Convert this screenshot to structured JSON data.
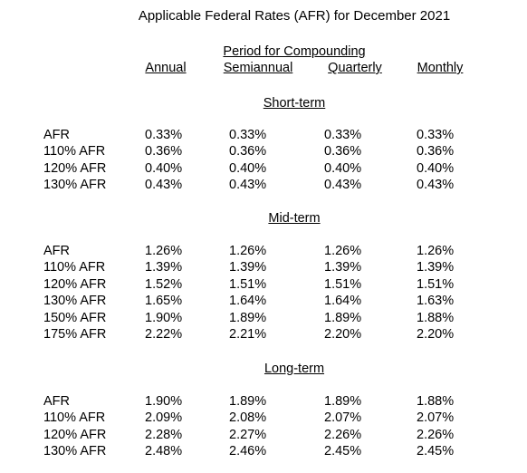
{
  "title": "Applicable Federal Rates (AFR) for December 2021",
  "group_header": "Period for Compounding",
  "columns": [
    "Annual",
    "Semiannual",
    "Quarterly",
    "Monthly"
  ],
  "sections": [
    {
      "heading": "Short-term",
      "rows": [
        {
          "label": "AFR",
          "values": [
            "0.33%",
            "0.33%",
            "0.33%",
            "0.33%"
          ]
        },
        {
          "label": "110% AFR",
          "values": [
            "0.36%",
            "0.36%",
            "0.36%",
            "0.36%"
          ]
        },
        {
          "label": "120% AFR",
          "values": [
            "0.40%",
            "0.40%",
            "0.40%",
            "0.40%"
          ]
        },
        {
          "label": "130% AFR",
          "values": [
            "0.43%",
            "0.43%",
            "0.43%",
            "0.43%"
          ]
        }
      ]
    },
    {
      "heading": "Mid-term",
      "rows": [
        {
          "label": "AFR",
          "values": [
            "1.26%",
            "1.26%",
            "1.26%",
            "1.26%"
          ]
        },
        {
          "label": "110% AFR",
          "values": [
            "1.39%",
            "1.39%",
            "1.39%",
            "1.39%"
          ]
        },
        {
          "label": "120% AFR",
          "values": [
            "1.52%",
            "1.51%",
            "1.51%",
            "1.51%"
          ]
        },
        {
          "label": "130% AFR",
          "values": [
            "1.65%",
            "1.64%",
            "1.64%",
            "1.63%"
          ]
        },
        {
          "label": "150% AFR",
          "values": [
            "1.90%",
            "1.89%",
            "1.89%",
            "1.88%"
          ]
        },
        {
          "label": "175% AFR",
          "values": [
            "2.22%",
            "2.21%",
            "2.20%",
            "2.20%"
          ]
        }
      ]
    },
    {
      "heading": "Long-term",
      "rows": [
        {
          "label": "AFR",
          "values": [
            "1.90%",
            "1.89%",
            "1.89%",
            "1.88%"
          ]
        },
        {
          "label": "110% AFR",
          "values": [
            "2.09%",
            "2.08%",
            "2.07%",
            "2.07%"
          ]
        },
        {
          "label": "120% AFR",
          "values": [
            "2.28%",
            "2.27%",
            "2.26%",
            "2.26%"
          ]
        },
        {
          "label": "130% AFR",
          "values": [
            "2.48%",
            "2.46%",
            "2.45%",
            "2.45%"
          ]
        }
      ]
    }
  ]
}
